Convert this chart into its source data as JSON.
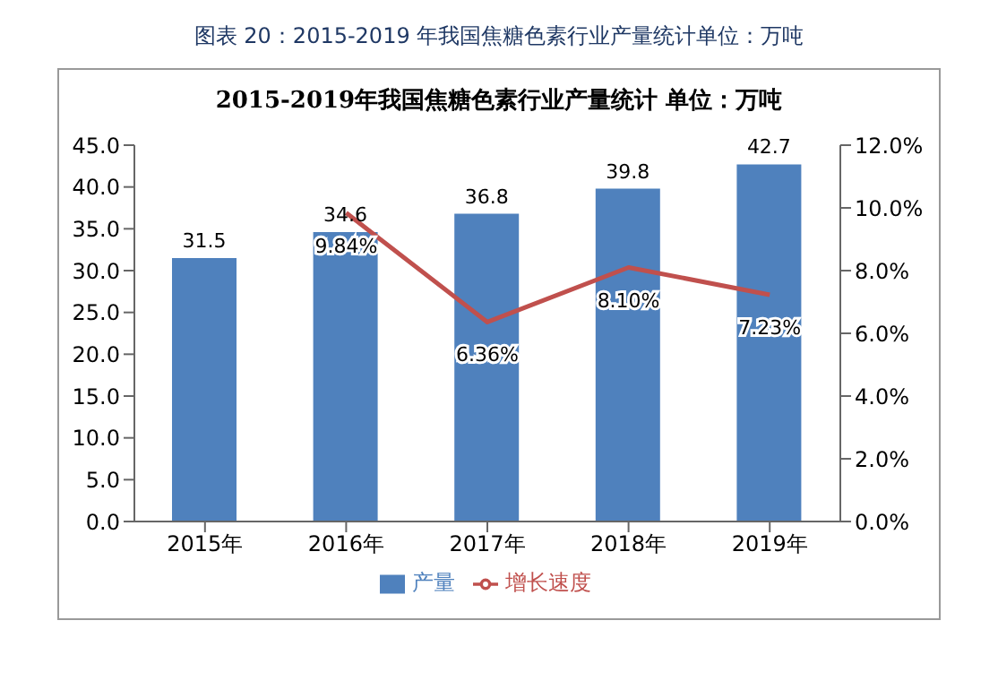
{
  "chart_data": {
    "type": "bar",
    "title": "图表 20：2015-2019 年我国焦糖色素行业产量统计单位：万吨",
    "subtitle": "2015-2019年我国焦糖色素行业产量统计 单位：万吨",
    "categories": [
      "2015年",
      "2016年",
      "2017年",
      "2018年",
      "2019年"
    ],
    "series": [
      {
        "name": "产量",
        "color": "#4f81bd",
        "values": [
          31.5,
          34.6,
          36.8,
          39.8,
          42.7
        ],
        "value_labels": [
          "31.5",
          "34.6",
          "36.8",
          "39.8",
          "42.7"
        ]
      },
      {
        "name": "增长速度",
        "type": "line",
        "axis": "y2",
        "color": "#c0504d",
        "values": [
          null,
          9.84,
          6.36,
          8.1,
          7.23
        ],
        "value_labels": [
          null,
          "9.84%",
          "6.36%",
          "8.10%",
          "7.23%"
        ]
      }
    ],
    "ylim": [
      0,
      45
    ],
    "yticks": [
      {
        "value": 0,
        "label": "0.0"
      },
      {
        "value": 5,
        "label": "5.0"
      },
      {
        "value": 10,
        "label": "10.0"
      },
      {
        "value": 15,
        "label": "15.0"
      },
      {
        "value": 20,
        "label": "20.0"
      },
      {
        "value": 25,
        "label": "25.0"
      },
      {
        "value": 30,
        "label": "30.0"
      },
      {
        "value": 35,
        "label": "35.0"
      },
      {
        "value": 40,
        "label": "40.0"
      },
      {
        "value": 45,
        "label": "45.0"
      }
    ],
    "y2lim": [
      0,
      12
    ],
    "y2ticks": [
      {
        "value": 0,
        "label": "0.0%"
      },
      {
        "value": 2,
        "label": "2.0%"
      },
      {
        "value": 4,
        "label": "4.0%"
      },
      {
        "value": 6,
        "label": "6.0%"
      },
      {
        "value": 8,
        "label": "8.0%"
      },
      {
        "value": 10,
        "label": "10.0%"
      },
      {
        "value": 12,
        "label": "12.0%"
      }
    ],
    "legend": "bottom",
    "grid": false
  }
}
